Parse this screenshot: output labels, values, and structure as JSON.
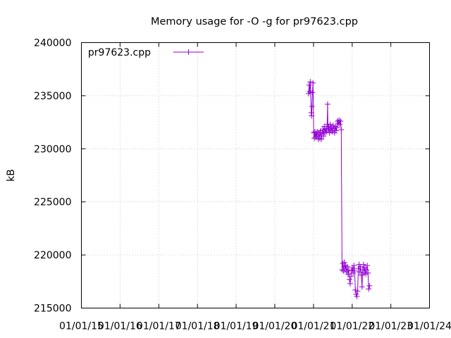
{
  "chart_data": {
    "type": "line",
    "title": "Memory usage for -O -g for pr97623.cpp",
    "xlabel": "",
    "ylabel": "kB",
    "ylim": [
      215000,
      240000
    ],
    "yticks": [
      215000,
      220000,
      225000,
      230000,
      235000,
      240000
    ],
    "xlim": [
      "2015-01-01",
      "2024-01-01"
    ],
    "xticks": [
      {
        "date": "2015-01-01",
        "label": "01/01/15"
      },
      {
        "date": "2016-01-01",
        "label": "01/01/16"
      },
      {
        "date": "2017-01-01",
        "label": "01/01/17"
      },
      {
        "date": "2018-01-01",
        "label": "01/01/18"
      },
      {
        "date": "2019-01-01",
        "label": "01/01/19"
      },
      {
        "date": "2020-01-01",
        "label": "01/01/20"
      },
      {
        "date": "2021-01-01",
        "label": "01/01/21"
      },
      {
        "date": "2022-01-01",
        "label": "01/01/22"
      },
      {
        "date": "2023-01-01",
        "label": "01/01/23"
      },
      {
        "date": "2024-01-01",
        "label": "01/01/24"
      }
    ],
    "grid": true,
    "legend_position": "top-left",
    "series": [
      {
        "name": "pr97623.cpp",
        "color": "#9400d3",
        "points": [
          [
            "2020-11-15",
            235200
          ],
          [
            "2020-11-20",
            236000
          ],
          [
            "2020-11-25",
            235400
          ],
          [
            "2020-12-01",
            236300
          ],
          [
            "2020-12-05",
            235300
          ],
          [
            "2020-12-10",
            233400
          ],
          [
            "2020-12-14",
            233100
          ],
          [
            "2020-12-18",
            234000
          ],
          [
            "2020-12-22",
            235300
          ],
          [
            "2020-12-27",
            236200
          ],
          [
            "2021-01-03",
            231500
          ],
          [
            "2021-01-08",
            231000
          ],
          [
            "2021-01-14",
            231600
          ],
          [
            "2021-01-20",
            231100
          ],
          [
            "2021-01-26",
            231500
          ],
          [
            "2021-02-01",
            231200
          ],
          [
            "2021-02-08",
            231600
          ],
          [
            "2021-02-15",
            230900
          ],
          [
            "2021-02-22",
            231500
          ],
          [
            "2021-03-01",
            231000
          ],
          [
            "2021-03-08",
            231700
          ],
          [
            "2021-03-15",
            230900
          ],
          [
            "2021-03-22",
            231400
          ],
          [
            "2021-03-29",
            231800
          ],
          [
            "2021-04-05",
            231200
          ],
          [
            "2021-04-12",
            232100
          ],
          [
            "2021-04-19",
            231500
          ],
          [
            "2021-04-26",
            231900
          ],
          [
            "2021-05-03",
            231600
          ],
          [
            "2021-05-10",
            232300
          ],
          [
            "2021-05-14",
            234200
          ],
          [
            "2021-05-17",
            231800
          ],
          [
            "2021-05-24",
            232100
          ],
          [
            "2021-05-31",
            231500
          ],
          [
            "2021-06-07",
            232300
          ],
          [
            "2021-06-14",
            231700
          ],
          [
            "2021-06-21",
            232000
          ],
          [
            "2021-06-28",
            231600
          ],
          [
            "2021-07-05",
            232200
          ],
          [
            "2021-07-12",
            231900
          ],
          [
            "2021-07-19",
            231500
          ],
          [
            "2021-07-26",
            232100
          ],
          [
            "2021-08-02",
            231700
          ],
          [
            "2021-08-09",
            232000
          ],
          [
            "2021-08-16",
            232600
          ],
          [
            "2021-08-23",
            232400
          ],
          [
            "2021-08-30",
            232700
          ],
          [
            "2021-09-06",
            232300
          ],
          [
            "2021-09-13",
            232600
          ],
          [
            "2021-09-20",
            231800
          ],
          [
            "2021-09-27",
            218600
          ],
          [
            "2021-10-04",
            219200
          ],
          [
            "2021-10-11",
            218500
          ],
          [
            "2021-10-18",
            219300
          ],
          [
            "2021-10-25",
            218700
          ],
          [
            "2021-11-01",
            219000
          ],
          [
            "2021-11-08",
            218400
          ],
          [
            "2021-11-15",
            218900
          ],
          [
            "2021-11-22",
            218200
          ],
          [
            "2021-11-29",
            218600
          ],
          [
            "2021-12-06",
            217700
          ],
          [
            "2021-12-13",
            217300
          ],
          [
            "2021-12-20",
            218000
          ],
          [
            "2021-12-27",
            218500
          ],
          [
            "2022-01-03",
            218800
          ],
          [
            "2022-01-10",
            218300
          ],
          [
            "2022-01-17",
            219000
          ],
          [
            "2022-01-24",
            218500
          ],
          [
            "2022-01-31",
            216700
          ],
          [
            "2022-02-07",
            216300
          ],
          [
            "2022-02-14",
            216100
          ],
          [
            "2022-02-21",
            216600
          ],
          [
            "2022-02-28",
            218700
          ],
          [
            "2022-03-07",
            219100
          ],
          [
            "2022-03-14",
            218400
          ],
          [
            "2022-03-21",
            218900
          ],
          [
            "2022-03-28",
            218100
          ],
          [
            "2022-04-04",
            217000
          ],
          [
            "2022-04-11",
            218600
          ],
          [
            "2022-04-18",
            219100
          ],
          [
            "2022-04-25",
            218300
          ],
          [
            "2022-05-02",
            218800
          ],
          [
            "2022-05-09",
            218200
          ],
          [
            "2022-05-16",
            218600
          ],
          [
            "2022-05-23",
            219000
          ],
          [
            "2022-05-30",
            218300
          ],
          [
            "2022-06-06",
            216800
          ],
          [
            "2022-06-13",
            217100
          ]
        ]
      }
    ]
  }
}
